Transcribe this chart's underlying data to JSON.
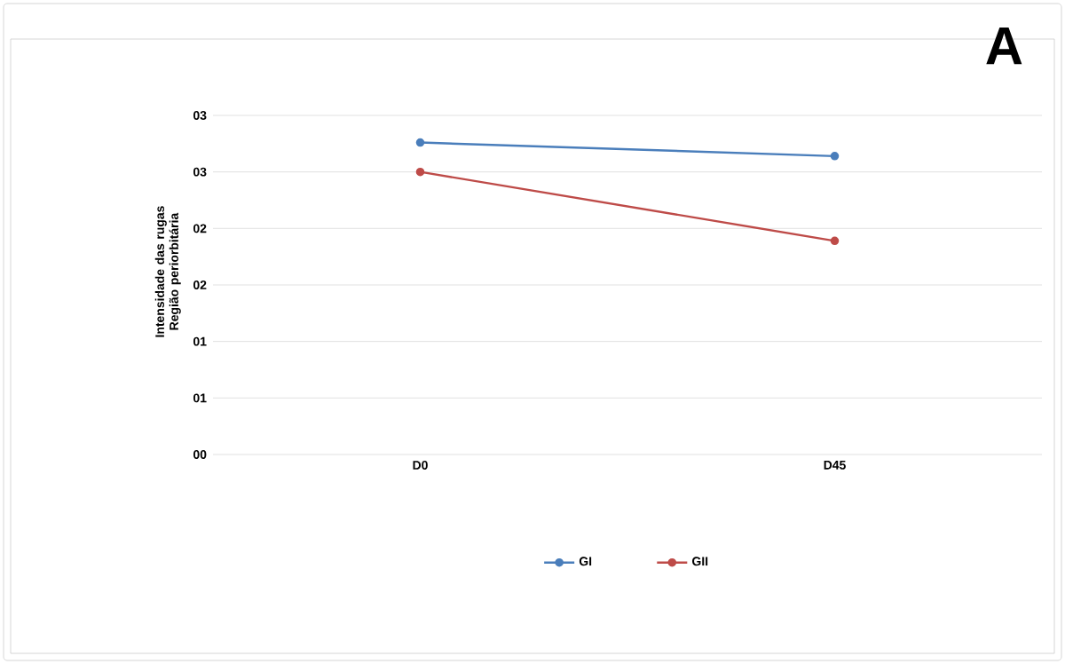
{
  "chart_data": {
    "type": "line",
    "ylabel": "Intensidade das rugas Região periorbitária",
    "annotations": [
      "A"
    ],
    "categories": [
      "D0",
      "D45"
    ],
    "series": [
      {
        "name": "GI",
        "color": "#4a7ebb",
        "values": [
          2.76,
          2.64
        ]
      },
      {
        "name": "GII",
        "color": "#be4b48",
        "values": [
          2.5,
          1.89
        ]
      }
    ],
    "ylim": [
      0,
      3
    ],
    "yticks": [
      {
        "value": 0,
        "label": "00"
      },
      {
        "value": 0.5,
        "label": "01"
      },
      {
        "value": 1,
        "label": "01"
      },
      {
        "value": 1.5,
        "label": "02"
      },
      {
        "value": 2,
        "label": "02"
      },
      {
        "value": 2.5,
        "label": "03"
      },
      {
        "value": 3,
        "label": "03"
      }
    ],
    "grid": "y",
    "legend": "bottom",
    "marker": "circle",
    "line_style": "solid"
  }
}
